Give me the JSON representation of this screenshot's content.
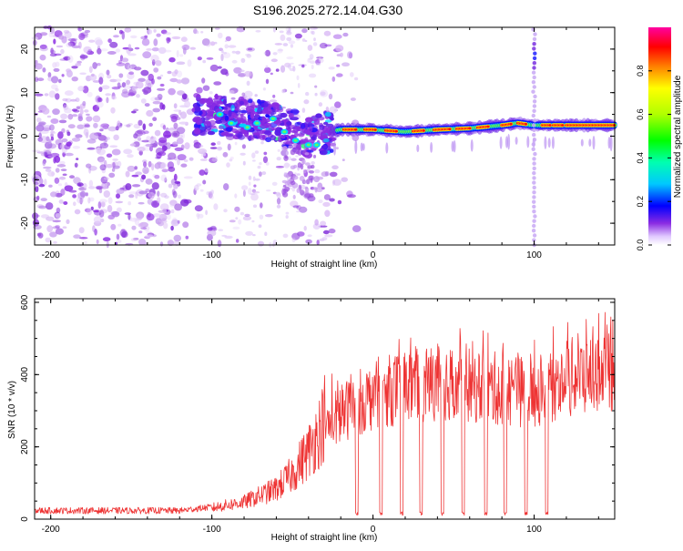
{
  "title": "S196.2025.272.14.04.G30",
  "chart_data": [
    {
      "type": "heatmap",
      "name": "spectrogram",
      "xlabel": "Height of straight line (km)",
      "ylabel": "Frequency (Hz)",
      "xlim": [
        -210,
        150
      ],
      "ylim": [
        -25,
        25
      ],
      "xticks": [
        -200,
        -100,
        0,
        100
      ],
      "xtick_labels": [
        "-200",
        "-100",
        "0",
        "100"
      ],
      "yticks": [
        -20,
        -10,
        0,
        10,
        20
      ],
      "ytick_labels": [
        "-20",
        "-10",
        "0",
        "10",
        "20"
      ],
      "colorbar": {
        "label": "Normalized spectral amplitude",
        "range": [
          0,
          1
        ],
        "ticks": [
          0.0,
          0.2,
          0.4,
          0.6,
          0.8
        ],
        "tick_labels": [
          "0.0",
          "0.2",
          "0.4",
          "0.6",
          "0.8"
        ],
        "colormap": "rainbow"
      },
      "ridge_points": [
        {
          "x": -100,
          "y": 5
        },
        {
          "x": -80,
          "y": 4
        },
        {
          "x": -60,
          "y": 3
        },
        {
          "x": -40,
          "y": 0
        },
        {
          "x": -20,
          "y": 1.5
        },
        {
          "x": 0,
          "y": 1.5
        },
        {
          "x": 20,
          "y": 1
        },
        {
          "x": 40,
          "y": 1.5
        },
        {
          "x": 60,
          "y": 1.8
        },
        {
          "x": 80,
          "y": 2.5
        },
        {
          "x": 90,
          "y": 3
        },
        {
          "x": 100,
          "y": 2.5
        },
        {
          "x": 120,
          "y": 2.5
        },
        {
          "x": 150,
          "y": 2.5
        }
      ],
      "interference_line_x": 100
    },
    {
      "type": "line",
      "name": "snr",
      "xlabel": "Height of straight line (km)",
      "ylabel": "SNR (10 * v/v)",
      "xlim": [
        -210,
        150
      ],
      "ylim": [
        0,
        610
      ],
      "xticks": [
        -200,
        -100,
        0,
        100
      ],
      "xtick_labels": [
        "-200",
        "-100",
        "0",
        "100"
      ],
      "yticks": [
        0,
        200,
        400,
        600
      ],
      "ytick_labels": [
        "0",
        "200",
        "400",
        "600"
      ],
      "color": "#ee3333",
      "envelope": [
        {
          "x": -210,
          "y": 20
        },
        {
          "x": -120,
          "y": 20
        },
        {
          "x": -100,
          "y": 30
        },
        {
          "x": -80,
          "y": 45
        },
        {
          "x": -60,
          "y": 80
        },
        {
          "x": -50,
          "y": 120
        },
        {
          "x": -40,
          "y": 180
        },
        {
          "x": -30,
          "y": 260
        },
        {
          "x": -20,
          "y": 300
        },
        {
          "x": -10,
          "y": 330
        },
        {
          "x": 0,
          "y": 350
        },
        {
          "x": 20,
          "y": 380
        },
        {
          "x": 40,
          "y": 390
        },
        {
          "x": 60,
          "y": 380
        },
        {
          "x": 80,
          "y": 370
        },
        {
          "x": 100,
          "y": 360
        },
        {
          "x": 120,
          "y": 400
        },
        {
          "x": 150,
          "y": 430
        }
      ],
      "dropouts_x": [
        -10,
        5,
        18,
        30,
        43,
        56,
        70,
        82,
        95,
        108
      ]
    }
  ]
}
